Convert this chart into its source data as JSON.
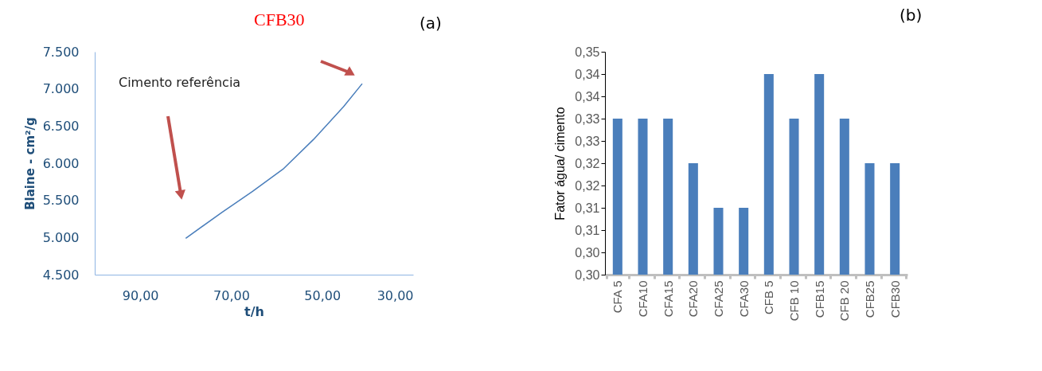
{
  "chart_data": [
    {
      "type": "line",
      "xlabel": "t/h",
      "ylabel": "Blaine - cm²/g",
      "annotations": [
        "(a)",
        "CFB30",
        "Cimento referência"
      ],
      "x": [
        80,
        72,
        65.3,
        58.6,
        51.9,
        45.3,
        41.2
      ],
      "series": [
        {
          "color": "#4a7ebb",
          "values": [
            4990,
            5340,
            5620,
            5920,
            6320,
            6760,
            7070
          ]
        }
      ],
      "xlim": [
        100,
        30
      ],
      "xticks": [
        {
          "value": 90,
          "label": "90,00"
        },
        {
          "value": 70,
          "label": "70,00"
        },
        {
          "value": 50,
          "label": "50,00"
        },
        {
          "value": 30,
          "label": "30,00"
        }
      ],
      "ylim": [
        4500,
        7500
      ],
      "yticks": [
        {
          "value": 4500,
          "label": "4.500"
        },
        {
          "value": 5000,
          "label": "5.000"
        },
        {
          "value": 5500,
          "label": "5.500"
        },
        {
          "value": 6000,
          "label": "6.000"
        },
        {
          "value": 6500,
          "label": "6.500"
        },
        {
          "value": 7000,
          "label": "7.000"
        },
        {
          "value": 7500,
          "label": "7.500"
        }
      ],
      "grid": false,
      "legend": false,
      "marker": "none",
      "line_style": "solid"
    },
    {
      "type": "bar",
      "ylabel": "Fator água/ cimento",
      "annotations": [
        "(b)"
      ],
      "categories": [
        "CFA 5",
        "CFA10",
        "CFA15",
        "CFA20",
        "CFA25",
        "CFA30",
        "CFB 5",
        "CFB 10",
        "CFB15",
        "CFB 20",
        "CFB25",
        "CFB30"
      ],
      "series": [
        {
          "color": "#4a7fc1",
          "values": [
            0.335,
            0.335,
            0.335,
            0.325,
            0.315,
            0.315,
            0.345,
            0.335,
            0.345,
            0.335,
            0.325,
            0.325
          ]
        }
      ],
      "ylim": [
        0.3,
        0.35
      ],
      "yticks": [
        {
          "value": 0.3,
          "label": "0,30"
        },
        {
          "value": 0.305,
          "label": "0,30"
        },
        {
          "value": 0.31,
          "label": "0,31"
        },
        {
          "value": 0.315,
          "label": "0,31"
        },
        {
          "value": 0.32,
          "label": "0,32"
        },
        {
          "value": 0.325,
          "label": "0,32"
        },
        {
          "value": 0.33,
          "label": "0,33"
        },
        {
          "value": 0.335,
          "label": "0,33"
        },
        {
          "value": 0.34,
          "label": "0,34"
        },
        {
          "value": 0.345,
          "label": "0,34"
        },
        {
          "value": 0.35,
          "label": "0,35"
        }
      ],
      "grid": false,
      "legend": false
    }
  ]
}
